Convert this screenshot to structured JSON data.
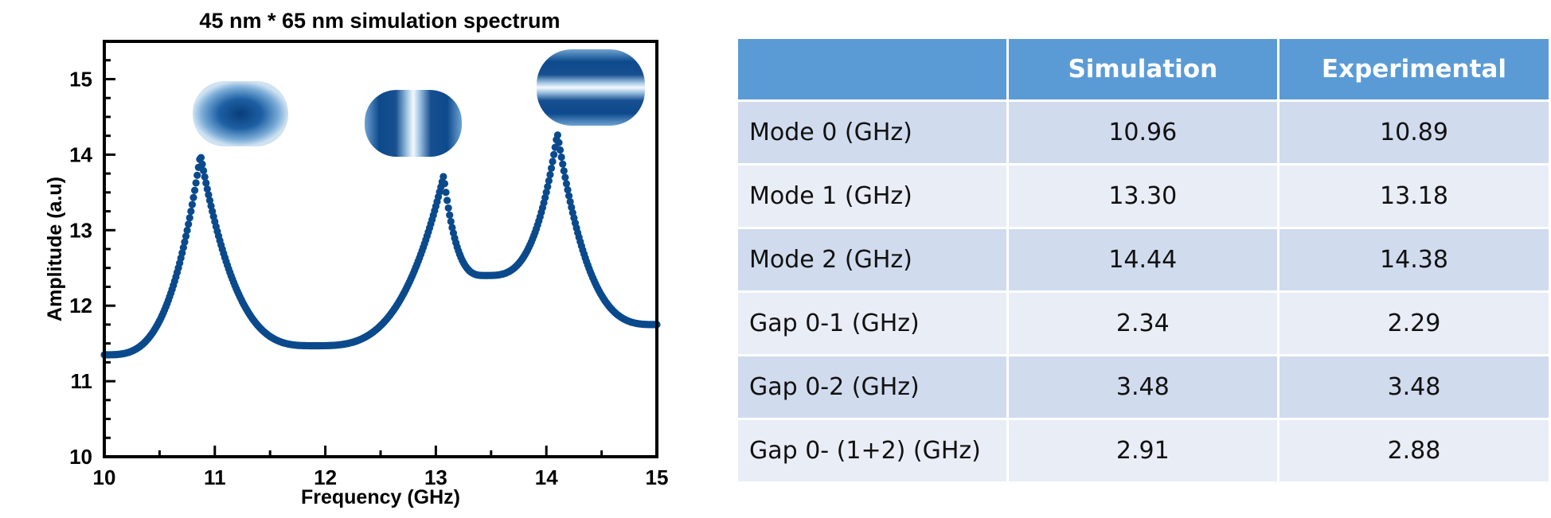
{
  "chart_data": {
    "type": "scatter",
    "title": "45 nm * 65 nm simulation spectrum",
    "xlabel": "Frequency (GHz)",
    "ylabel": "Amplitude (a.u)",
    "xlim": [
      10,
      15
    ],
    "ylim": [
      10,
      15.5
    ],
    "x_ticks": [
      10,
      11,
      12,
      13,
      14,
      15
    ],
    "y_ticks": [
      10,
      11,
      12,
      13,
      14,
      15
    ],
    "grid": false,
    "series": [
      {
        "color": "#0a4a8c",
        "peaks": [
          {
            "x": 10.87,
            "y": 14.0
          },
          {
            "x": 13.07,
            "y": 13.72
          },
          {
            "x": 14.1,
            "y": 14.28
          }
        ],
        "minima": [
          {
            "x": 11.9,
            "y": 11.47
          },
          {
            "x": 13.45,
            "y": 12.4
          }
        ],
        "endpoints": [
          {
            "x": 10.0,
            "y": 11.35
          },
          {
            "x": 15.0,
            "y": 11.75
          }
        ]
      }
    ],
    "insets": [
      {
        "mode": 0,
        "near_x": 11.25,
        "pattern": "single-lobe"
      },
      {
        "mode": 1,
        "near_x": 13.0,
        "pattern": "two-lobes-horizontal"
      },
      {
        "mode": 2,
        "near_x": 14.4,
        "pattern": "two-lobes-vertical"
      }
    ]
  },
  "table": {
    "headers": [
      "",
      "Simulation",
      "Experimental"
    ],
    "rows": [
      {
        "label": "Mode 0 (GHz)",
        "simulation": "10.96",
        "experimental": "10.89"
      },
      {
        "label": "Mode 1 (GHz)",
        "simulation": "13.30",
        "experimental": "13.18"
      },
      {
        "label": "Mode 2 (GHz)",
        "simulation": "14.44",
        "experimental": "14.38"
      },
      {
        "label": "Gap 0-1 (GHz)",
        "simulation": "2.34",
        "experimental": "2.29"
      },
      {
        "label": "Gap 0-2 (GHz)",
        "simulation": "3.48",
        "experimental": "3.48"
      },
      {
        "label": "Gap 0- (1+2) (GHz)",
        "simulation": "2.91",
        "experimental": "2.88"
      }
    ]
  },
  "colors": {
    "series": "#0a4a8c",
    "header": "#5b9bd5",
    "row_dark": "#d0dbee",
    "row_light": "#e9edf6"
  }
}
